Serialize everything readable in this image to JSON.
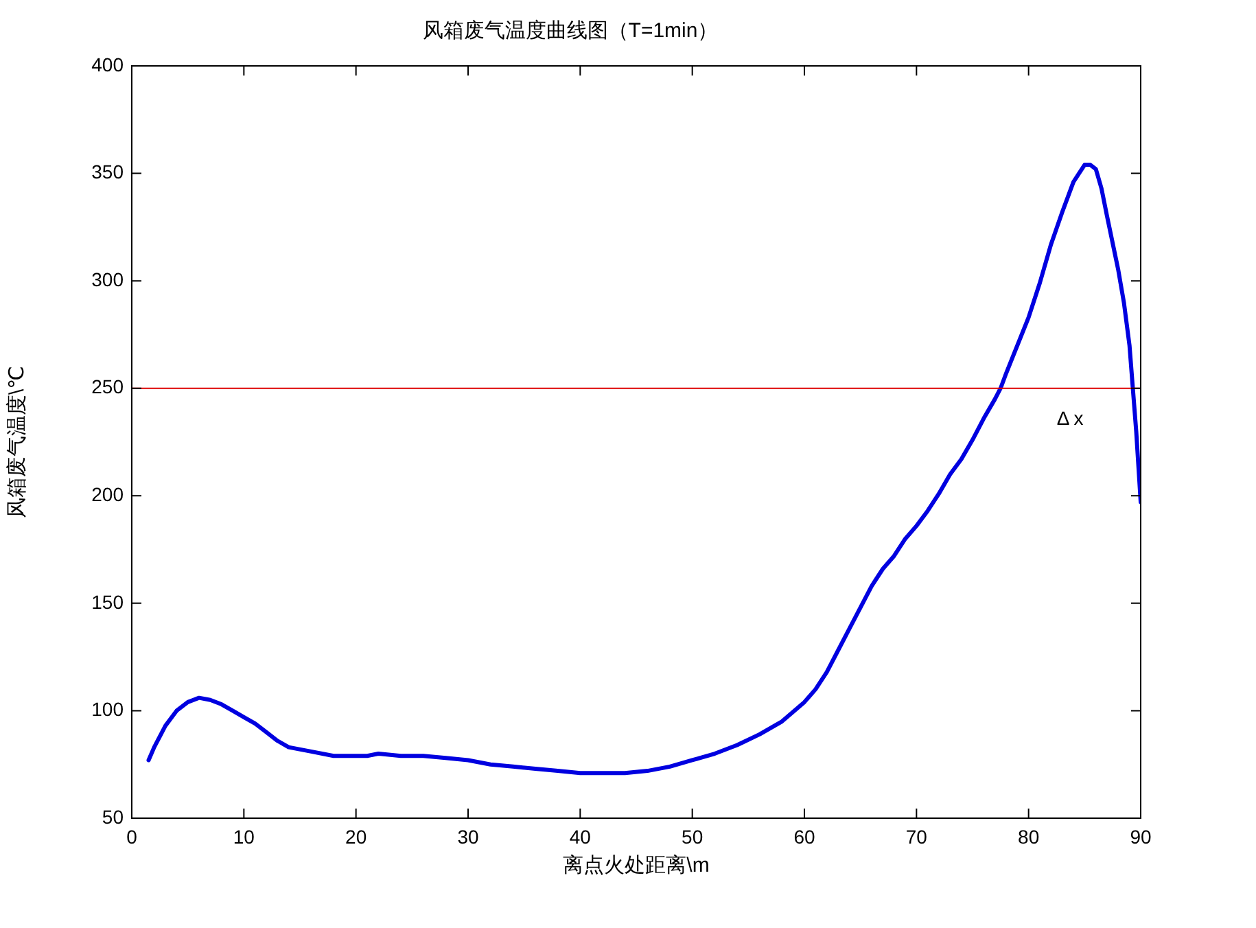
{
  "chart_data": {
    "type": "line",
    "title": "风箱废气温度曲线图（T=1min）",
    "xlabel": "离点火处距离\\m",
    "ylabel": "风箱废气温度\\℃",
    "xlim": [
      0,
      90
    ],
    "xticks": [
      0,
      10,
      20,
      30,
      40,
      50,
      60,
      70,
      80,
      90
    ],
    "ylim": [
      50,
      400
    ],
    "yticks": [
      50,
      100,
      150,
      200,
      250,
      300,
      350,
      400
    ],
    "grid": false,
    "legend": false,
    "marker": "none",
    "line_style": "solid",
    "ref_lines": [
      {
        "axis": "y",
        "value": 250,
        "color": "#dd0000"
      }
    ],
    "annotations": [
      "Δ x"
    ],
    "series": [
      {
        "color": "#0000e0",
        "x": [
          1.5,
          2,
          3,
          4,
          5,
          6,
          7,
          8,
          9,
          10,
          11,
          12,
          13,
          14,
          16,
          18,
          20,
          21,
          22,
          24,
          26,
          28,
          30,
          32,
          34,
          36,
          38,
          40,
          42,
          44,
          46,
          48,
          50,
          52,
          54,
          56,
          58,
          60,
          61,
          62,
          63,
          64,
          65,
          66,
          67,
          68,
          69,
          70,
          71,
          72,
          73,
          74,
          75,
          76,
          77,
          77.5,
          78,
          79,
          80,
          81,
          82,
          83,
          84,
          85,
          85.5,
          86,
          86.5,
          87,
          88,
          88.5,
          89,
          89.3,
          89.6,
          90
        ],
        "values": [
          77,
          83,
          93,
          100,
          104,
          106,
          105,
          103,
          100,
          97,
          94,
          90,
          86,
          83,
          81,
          79,
          79,
          79,
          80,
          79,
          79,
          78,
          77,
          75,
          74,
          73,
          72,
          71,
          71,
          71,
          72,
          74,
          77,
          80,
          84,
          89,
          95,
          104,
          110,
          118,
          128,
          138,
          148,
          158,
          166,
          172,
          180,
          186,
          193,
          201,
          210,
          217,
          226,
          236,
          245,
          250,
          257,
          270,
          283,
          299,
          317,
          332,
          346,
          354,
          354,
          352,
          343,
          330,
          305,
          290,
          270,
          250,
          230,
          197
        ]
      }
    ]
  }
}
